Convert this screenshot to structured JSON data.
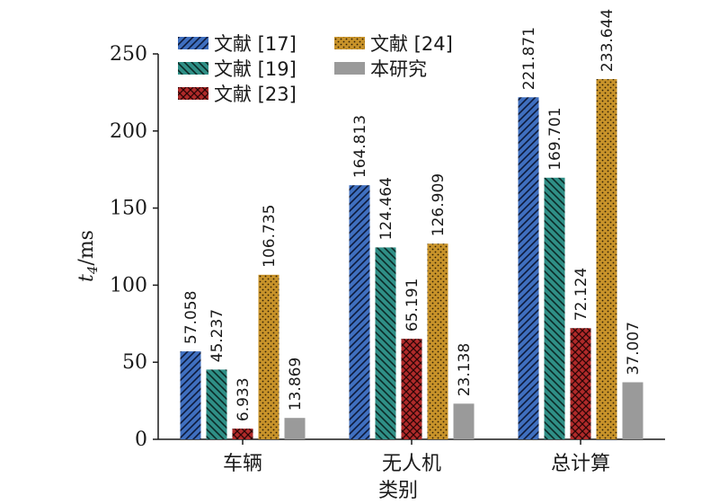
{
  "chart_data": {
    "type": "bar",
    "categories": [
      "车辆",
      "无人机",
      "总计算"
    ],
    "series": [
      {
        "name": "文献 [17]",
        "values": [
          57.058,
          164.813,
          221.871
        ],
        "color": "#3f6fbf",
        "pattern": "hatch-forward"
      },
      {
        "name": "文献 [19]",
        "values": [
          45.237,
          124.464,
          169.701
        ],
        "color": "#2f8f86",
        "pattern": "hatch-back"
      },
      {
        "name": "文献 [23]",
        "values": [
          6.933,
          65.191,
          72.124
        ],
        "color": "#b02a2a",
        "pattern": "crosshatch"
      },
      {
        "name": "文献 [24]",
        "values": [
          106.735,
          126.909,
          233.644
        ],
        "color": "#c8932a",
        "pattern": "dots"
      },
      {
        "name": "本研究",
        "values": [
          13.869,
          23.138,
          37.007
        ],
        "color": "#9a9a9a",
        "pattern": "solid"
      }
    ],
    "value_labels": [
      [
        "57.058",
        "164.813",
        "221.871"
      ],
      [
        "45.237",
        "124.464",
        "169.701"
      ],
      [
        "6.933",
        "65.191",
        "72.124"
      ],
      [
        "106.735",
        "126.909",
        "233.644"
      ],
      [
        "13.869",
        "23.138",
        "37.007"
      ]
    ],
    "xlabel": "类别",
    "ylabel_main": "t",
    "ylabel_sub": "4",
    "ylabel_unit": "/ms",
    "ylim": [
      0,
      250
    ],
    "yticks": [
      0,
      50,
      100,
      150,
      200,
      250
    ],
    "legend_position": "top-left",
    "grid": false
  }
}
